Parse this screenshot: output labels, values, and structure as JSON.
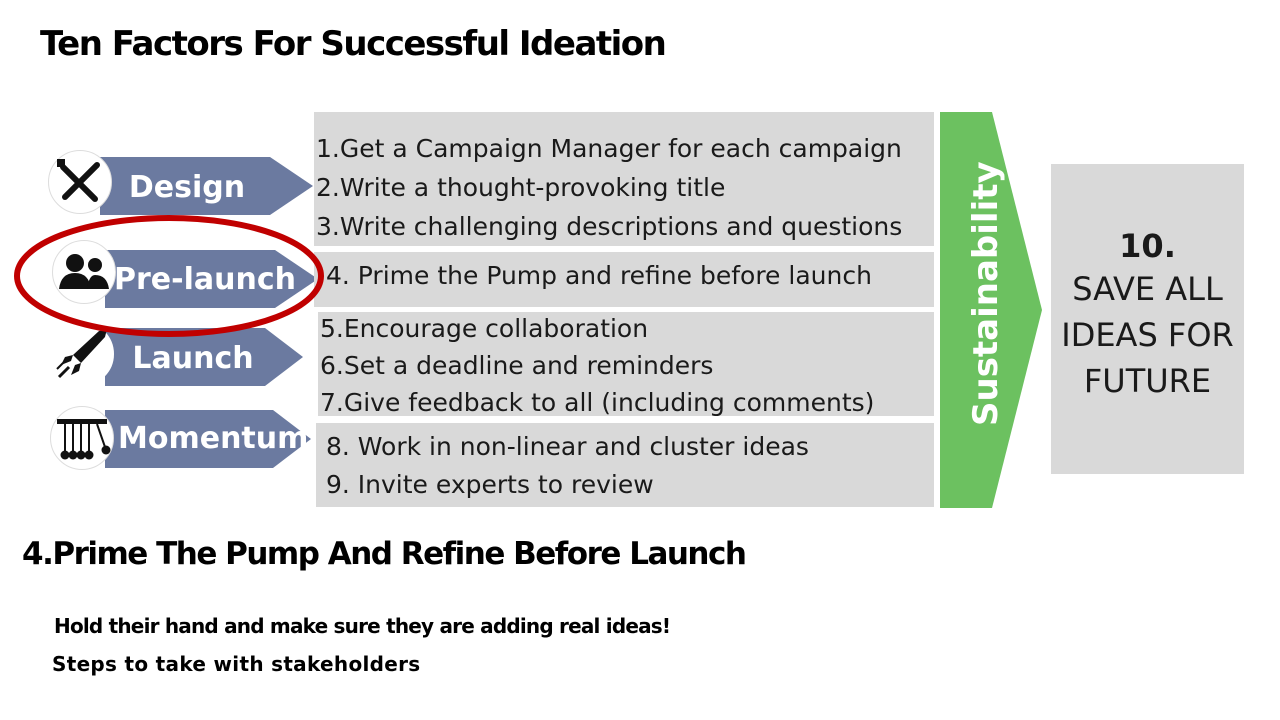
{
  "title": "Ten Factors For Successful Ideation",
  "stages": [
    {
      "label": "Design",
      "icon": "pencil-ruler-icon"
    },
    {
      "label": "Pre-launch",
      "icon": "people-icon"
    },
    {
      "label": "Launch",
      "icon": "rocket-icon"
    },
    {
      "label": "Momentum",
      "icon": "newtons-cradle-icon"
    }
  ],
  "factors": {
    "design": [
      "1.Get a Campaign Manager for each campaign",
      "2.Write a thought-provoking title",
      "3.Write challenging descriptions and questions"
    ],
    "prelaunch": [
      "4. Prime the Pump and refine before launch"
    ],
    "launch": [
      "5.Encourage collaboration",
      "6.Set a deadline and reminders",
      "7.Give feedback to all (including comments)"
    ],
    "momentum": [
      "8. Work in non-linear and cluster ideas",
      "9. Invite experts to review"
    ]
  },
  "sustainability_label": "Sustainability",
  "save_box": {
    "number": "10.",
    "lines": [
      "SAVE ALL",
      "IDEAS FOR",
      "FUTURE"
    ]
  },
  "highlight": {
    "stage": "Pre-launch",
    "color": "#c00000"
  },
  "subtitle": "4.Prime The Pump And Refine Before Launch",
  "notes": [
    "Hold their hand and make sure they are adding real ideas!",
    "Steps to take with stakeholders"
  ],
  "colors": {
    "stage_arrow": "#6b7aa0",
    "factor_box": "#d9d9d9",
    "sustainability_arrow": "#6cc160",
    "highlight_ring": "#c00000"
  }
}
